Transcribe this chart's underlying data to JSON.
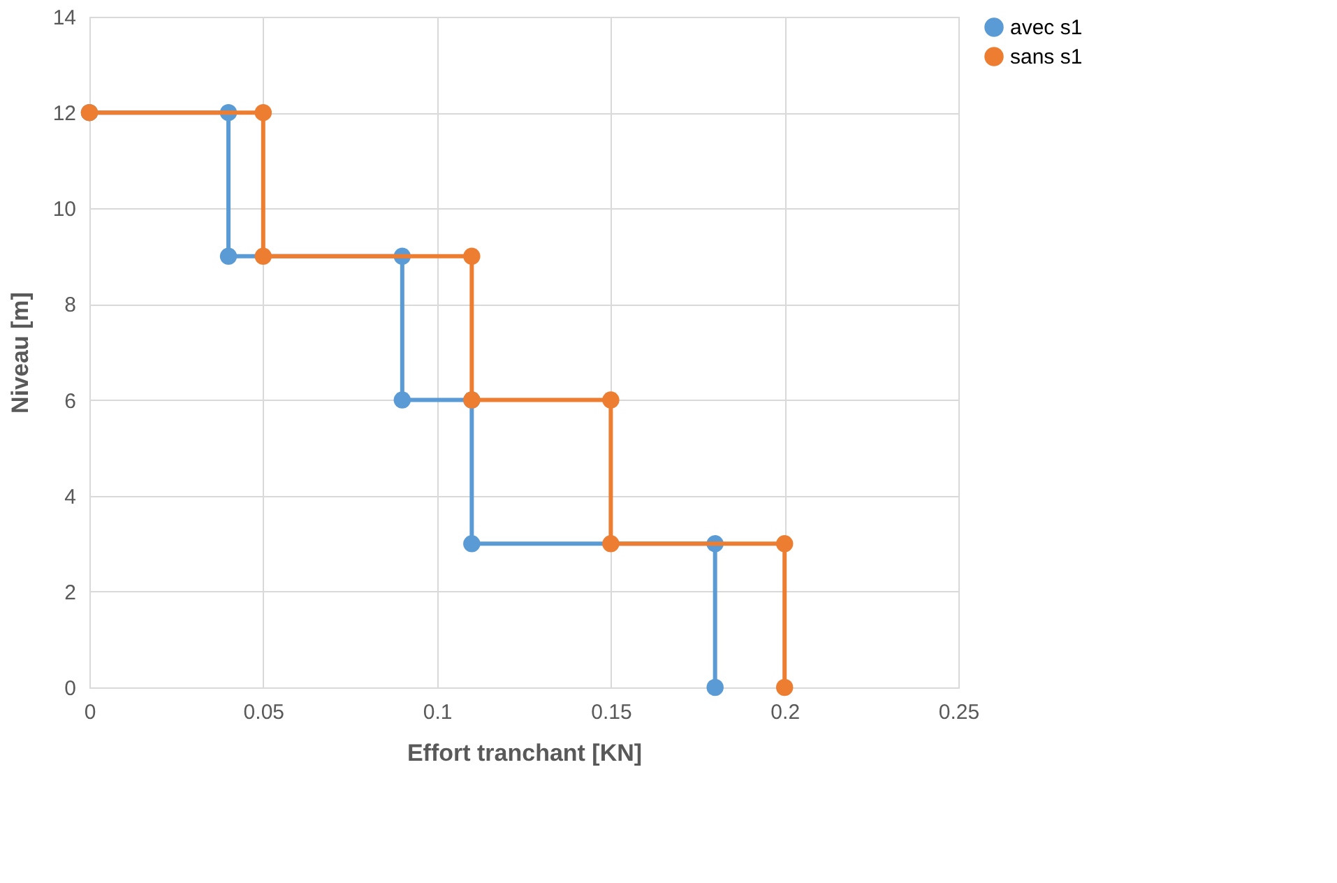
{
  "chart_data": {
    "type": "line",
    "xlabel": "Effort tranchant [KN]",
    "ylabel": "Niveau [m]",
    "xlim": [
      0,
      0.25
    ],
    "xticks": [
      0,
      0.05,
      0.1,
      0.15,
      0.2,
      0.25
    ],
    "ylim": [
      0,
      14
    ],
    "yticks": [
      0,
      2,
      4,
      6,
      8,
      10,
      12,
      14
    ],
    "grid": true,
    "legend": "right",
    "marker": "circle",
    "line_style": "solid",
    "series": [
      {
        "name": "avec s1",
        "color": "#5b9bd5",
        "x": [
          0,
          0.04,
          0.04,
          0.09,
          0.09,
          0.11,
          0.11,
          0.18,
          0.18
        ],
        "values": [
          12,
          12,
          9,
          9,
          6,
          6,
          3,
          3,
          0
        ]
      },
      {
        "name": "sans s1",
        "color": "#ed7d31",
        "x": [
          0,
          0.05,
          0.05,
          0.11,
          0.11,
          0.15,
          0.15,
          0.2,
          0.2
        ],
        "values": [
          12,
          12,
          9,
          9,
          6,
          6,
          3,
          3,
          0
        ]
      }
    ]
  }
}
